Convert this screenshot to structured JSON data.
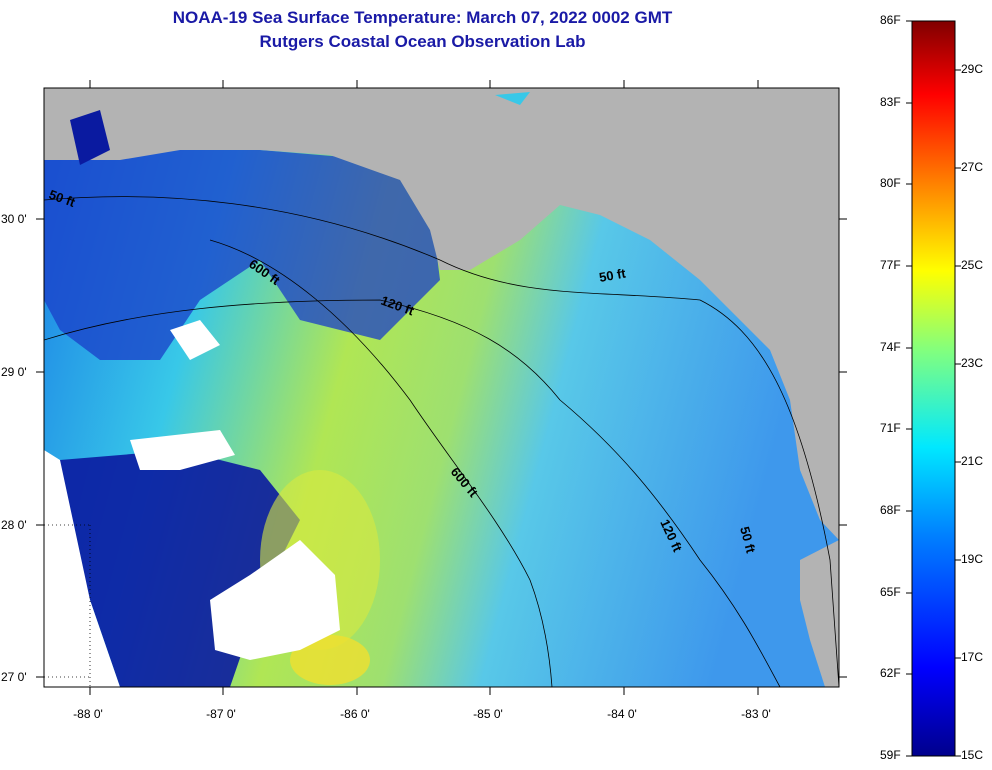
{
  "title": {
    "line1": "NOAA-19 Sea Surface Temperature:  March 07, 2022 0002 GMT",
    "line2": "Rutgers Coastal Ocean Observation Lab"
  },
  "colors": {
    "land": "#b3b3b3",
    "title": "#1a1aa6",
    "no_data": "#ffffff"
  },
  "map": {
    "lon_labels": [
      "-88 0'",
      "-87 0'",
      "-86 0'",
      "-85 0'",
      "-84 0'",
      "-83 0'"
    ],
    "lat_labels": [
      "30 0'",
      "29 0'",
      "28 0'",
      "27 0'"
    ],
    "contours": [
      {
        "label": "50 ft"
      },
      {
        "label": "600 ft"
      },
      {
        "label": "120 ft"
      },
      {
        "label": "50 ft"
      },
      {
        "label": "600 ft"
      },
      {
        "label": "120 ft"
      },
      {
        "label": "50 ft"
      }
    ]
  },
  "colorbar": {
    "fahrenheit": [
      "86F",
      "83F",
      "80F",
      "77F",
      "74F",
      "71F",
      "68F",
      "65F",
      "62F",
      "59F"
    ],
    "celsius": [
      "29C",
      "27C",
      "25C",
      "23C",
      "21C",
      "19C",
      "17C",
      "15C"
    ]
  }
}
